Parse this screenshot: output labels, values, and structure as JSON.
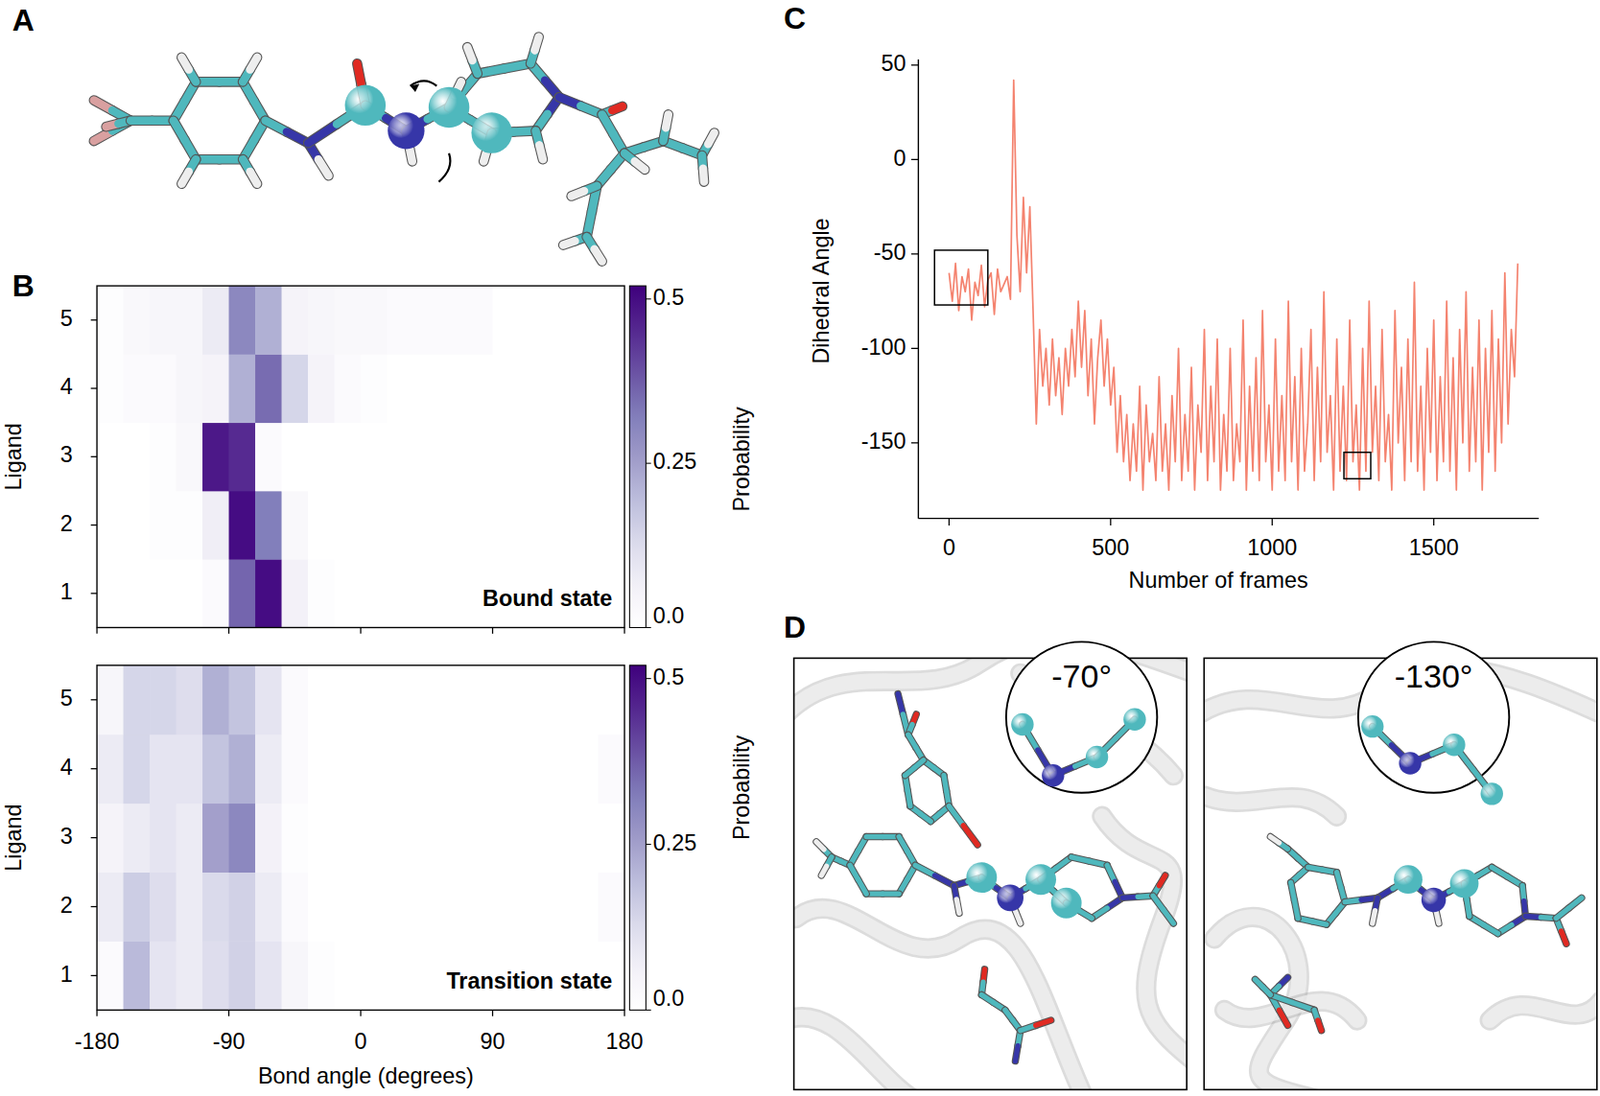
{
  "panels": [
    "A",
    "B",
    "C",
    "D"
  ],
  "chart_data": [
    {
      "type": "heatmap",
      "title": "Bound state",
      "y_label": "Ligand",
      "categories": [
        1,
        2,
        3,
        4,
        5
      ],
      "xlim": [
        -180,
        180
      ],
      "xticks": [
        -180,
        -90,
        0,
        90,
        180
      ],
      "bins": [
        -180,
        -162,
        -144,
        -126,
        -108,
        -90,
        -72,
        -54,
        -36,
        -18,
        0,
        18,
        36,
        54,
        72,
        90,
        108,
        126,
        144,
        162,
        180
      ],
      "cells": [
        [
          0,
          0,
          0,
          0,
          0.02,
          0.36,
          0.5,
          0.06,
          0.01,
          0,
          0,
          0,
          0,
          0,
          0,
          0,
          0,
          0,
          0,
          0
        ],
        [
          0,
          0,
          0.01,
          0.01,
          0.07,
          0.5,
          0.32,
          0.03,
          0,
          0,
          0,
          0,
          0,
          0,
          0,
          0,
          0,
          0,
          0,
          0
        ],
        [
          0,
          0,
          0.01,
          0.03,
          0.48,
          0.45,
          0.02,
          0,
          0,
          0,
          0,
          0,
          0,
          0,
          0,
          0,
          0,
          0,
          0,
          0
        ],
        [
          0.01,
          0.02,
          0.02,
          0.04,
          0.05,
          0.22,
          0.35,
          0.14,
          0.05,
          0.02,
          0.01,
          0,
          0,
          0,
          0,
          0,
          0,
          0,
          0,
          0
        ],
        [
          0.01,
          0.03,
          0.04,
          0.04,
          0.08,
          0.3,
          0.22,
          0.05,
          0.04,
          0.03,
          0.03,
          0.02,
          0.02,
          0.02,
          0.02,
          0,
          0,
          0,
          0,
          0
        ]
      ],
      "colorbar": {
        "label": "Probability",
        "range": [
          0,
          0.52
        ],
        "ticks": [
          {
            "value": 0,
            "label": "0.0"
          },
          0.25,
          {
            "value": 0.5,
            "label": "0.5"
          }
        ]
      }
    },
    {
      "type": "heatmap",
      "title": "Transition state",
      "x_label": "Bond angle (degrees)",
      "y_label": "Ligand",
      "categories": [
        1,
        2,
        3,
        4,
        5
      ],
      "xlim": [
        -180,
        180
      ],
      "xticks": [
        -180,
        -90,
        0,
        90,
        180
      ],
      "bins": [
        -180,
        -162,
        -144,
        -126,
        -108,
        -90,
        -72,
        -54,
        -36,
        -18,
        0,
        18,
        36,
        54,
        72,
        90,
        108,
        126,
        144,
        162,
        180
      ],
      "cells": [
        [
          0.02,
          0.2,
          0.1,
          0.08,
          0.12,
          0.15,
          0.1,
          0.04,
          0.01,
          0,
          0,
          0,
          0,
          0,
          0,
          0,
          0,
          0,
          0,
          0
        ],
        [
          0.08,
          0.16,
          0.12,
          0.08,
          0.13,
          0.15,
          0.08,
          0.02,
          0,
          0,
          0,
          0,
          0,
          0,
          0,
          0,
          0,
          0,
          0,
          0.02
        ],
        [
          0.05,
          0.08,
          0.1,
          0.08,
          0.25,
          0.3,
          0.06,
          0.01,
          0,
          0,
          0,
          0,
          0,
          0,
          0,
          0,
          0,
          0,
          0,
          0
        ],
        [
          0.08,
          0.14,
          0.1,
          0.1,
          0.18,
          0.22,
          0.08,
          0.02,
          0,
          0,
          0,
          0,
          0,
          0,
          0,
          0,
          0,
          0,
          0,
          0.02
        ],
        [
          0.04,
          0.14,
          0.14,
          0.12,
          0.22,
          0.18,
          0.1,
          0.02,
          0,
          0,
          0,
          0,
          0,
          0,
          0,
          0,
          0,
          0,
          0,
          0
        ]
      ],
      "colorbar": {
        "label": "Probability",
        "range": [
          0,
          0.52
        ],
        "ticks": [
          {
            "value": 0,
            "label": "0.0"
          },
          0.25,
          {
            "value": 0.5,
            "label": "0.5"
          }
        ]
      }
    },
    {
      "type": "line",
      "x_label": "Number of frames",
      "y_label": "Dihedral Angle",
      "xlim": [
        -95,
        1825
      ],
      "xticks": [
        0,
        500,
        1000,
        1500
      ],
      "ylim": [
        -190,
        53
      ],
      "yticks": [
        50,
        0,
        -50,
        -100,
        -150
      ],
      "x": [
        0,
        10,
        20,
        30,
        40,
        50,
        60,
        70,
        80,
        90,
        100,
        110,
        120,
        130,
        140,
        150,
        160,
        170,
        180,
        190,
        200,
        210,
        220,
        230,
        240,
        250,
        260,
        270,
        280,
        290,
        300,
        310,
        320,
        330,
        340,
        350,
        360,
        370,
        380,
        390,
        400,
        410,
        420,
        430,
        440,
        450,
        460,
        470,
        480,
        490,
        500,
        510,
        520,
        530,
        540,
        550,
        560,
        570,
        580,
        590,
        600,
        610,
        620,
        630,
        640,
        650,
        660,
        670,
        680,
        690,
        700,
        710,
        720,
        730,
        740,
        750,
        760,
        770,
        780,
        790,
        800,
        810,
        820,
        830,
        840,
        850,
        860,
        870,
        880,
        890,
        900,
        910,
        920,
        930,
        940,
        950,
        960,
        970,
        980,
        990,
        1000,
        1010,
        1020,
        1030,
        1040,
        1050,
        1060,
        1070,
        1080,
        1090,
        1100,
        1110,
        1120,
        1130,
        1140,
        1150,
        1160,
        1170,
        1180,
        1190,
        1200,
        1210,
        1220,
        1230,
        1240,
        1250,
        1260,
        1270,
        1280,
        1290,
        1300,
        1310,
        1320,
        1330,
        1340,
        1350,
        1360,
        1370,
        1380,
        1390,
        1400,
        1410,
        1420,
        1430,
        1440,
        1450,
        1460,
        1470,
        1480,
        1490,
        1500,
        1510,
        1520,
        1530,
        1540,
        1550,
        1560,
        1570,
        1580,
        1590,
        1600,
        1610,
        1620,
        1630,
        1640,
        1650,
        1660,
        1670,
        1680,
        1690,
        1700,
        1710,
        1720,
        1730,
        1740,
        1750,
        1760
      ],
      "series": [
        {
          "color": "#f4836f",
          "values": [
            -60,
            -75,
            -55,
            -80,
            -62,
            -70,
            -58,
            -85,
            -65,
            -72,
            -56,
            -78,
            -64,
            -60,
            -82,
            -58,
            -70,
            -66,
            -62,
            -74,
            42,
            -40,
            -70,
            -20,
            -60,
            -25,
            -80,
            -140,
            -90,
            -120,
            -100,
            -130,
            -95,
            -125,
            -105,
            -135,
            -100,
            -120,
            -90,
            -115,
            -75,
            -110,
            -80,
            -125,
            -95,
            -140,
            -105,
            -85,
            -120,
            -95,
            -130,
            -110,
            -155,
            -125,
            -160,
            -135,
            -170,
            -140,
            -165,
            -120,
            -175,
            -130,
            -160,
            -145,
            -170,
            -115,
            -165,
            -140,
            -175,
            -125,
            -160,
            -100,
            -170,
            -135,
            -165,
            -110,
            -175,
            -130,
            -155,
            -90,
            -170,
            -120,
            -160,
            -95,
            -175,
            -135,
            -165,
            -100,
            -170,
            -140,
            -160,
            -85,
            -175,
            -120,
            -165,
            -105,
            -170,
            -80,
            -160,
            -130,
            -175,
            -95,
            -165,
            -125,
            -170,
            -75,
            -160,
            -115,
            -175,
            -100,
            -165,
            -140,
            -90,
            -170,
            -110,
            -160,
            -70,
            -155,
            -125,
            -175,
            -95,
            -165,
            -120,
            -170,
            -85,
            -160,
            -130,
            -175,
            -100,
            -165,
            -75,
            -155,
            -120,
            -170,
            -90,
            -160,
            -135,
            -175,
            -80,
            -150,
            -110,
            -170,
            -95,
            -160,
            -65,
            -165,
            -120,
            -175,
            -100,
            -155,
            -85,
            -170,
            -115,
            -160,
            -75,
            -165,
            -105,
            -175,
            -90,
            -150,
            -70,
            -165,
            -110,
            -160,
            -85,
            -175,
            -100,
            -155,
            -80,
            -165,
            -95,
            -150,
            -60,
            -140,
            -90,
            -115,
            -55
          ]
        }
      ],
      "boxes": [
        {
          "x": [
            -45,
            120
          ],
          "y": [
            -48,
            -77
          ]
        },
        {
          "x": [
            1222,
            1305
          ],
          "y": [
            -155,
            -169
          ]
        }
      ]
    }
  ],
  "insets": [
    {
      "label": "-70°"
    },
    {
      "label": "-130°"
    }
  ]
}
